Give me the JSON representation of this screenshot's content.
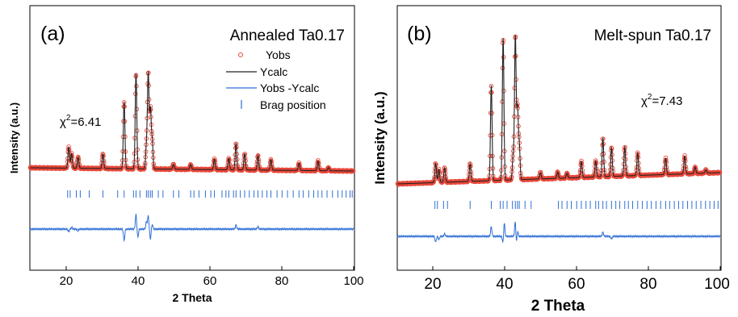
{
  "chart_data": [
    {
      "type": "line",
      "panel_label": "(a)",
      "title": "Annealed Ta0.17",
      "xlabel": "2 Theta",
      "ylabel": "Intensity (a.u.)",
      "xlim": [
        10,
        100
      ],
      "xticks": [
        "20",
        "40",
        "60",
        "80",
        "100"
      ],
      "chi2": {
        "prefix": "χ",
        "sup": "2",
        "suffix": "=6.41"
      },
      "grid": false,
      "legend_position": "top-right",
      "legend": [
        {
          "key": "yobs",
          "label": "Yobs",
          "marker": "circle"
        },
        {
          "key": "ycalc",
          "label": "Ycalc",
          "marker": "line"
        },
        {
          "key": "diff",
          "label": "Yobs -Ycalc",
          "marker": "line"
        },
        {
          "key": "bragg",
          "label": "Brag position",
          "marker": "tick"
        }
      ],
      "background": {
        "start": 10,
        "end": 6
      },
      "peaks": [
        [
          20.8,
          26
        ],
        [
          21.6,
          18
        ],
        [
          23.4,
          14
        ],
        [
          30.3,
          18
        ],
        [
          36.2,
          83
        ],
        [
          39.5,
          118
        ],
        [
          42.4,
          28
        ],
        [
          42.9,
          117
        ],
        [
          43.5,
          72
        ],
        [
          44.0,
          34
        ],
        [
          49.9,
          6
        ],
        [
          54.7,
          6
        ],
        [
          61.3,
          13
        ],
        [
          65.3,
          14
        ],
        [
          67.3,
          33
        ],
        [
          69.7,
          20
        ],
        [
          73.4,
          18
        ],
        [
          77.0,
          13
        ],
        [
          84.8,
          9
        ],
        [
          90.1,
          12
        ],
        [
          93.0,
          4
        ]
      ],
      "bragg_positions": [
        20.5,
        21.2,
        22.9,
        24.0,
        26.5,
        30.3,
        34.4,
        36.2,
        38.8,
        39.5,
        40.6,
        42.4,
        42.9,
        43.5,
        44.0,
        45.7,
        47.0,
        49.9,
        51.4,
        54.7,
        55.6,
        57.0,
        58.8,
        60.3,
        61.3,
        63.4,
        64.5,
        65.3,
        66.6,
        67.3,
        68.5,
        69.7,
        71.0,
        72.3,
        73.4,
        74.6,
        75.9,
        77.0,
        78.7,
        80.1,
        81.6,
        83.2,
        84.8,
        86.0,
        87.5,
        88.9,
        90.1,
        91.2,
        92.6,
        94.1,
        95.6,
        96.8,
        97.9,
        99.0,
        99.6
      ],
      "difference_features": [
        [
          20.8,
          -3
        ],
        [
          21.6,
          2
        ],
        [
          23.4,
          -2
        ],
        [
          36.2,
          -14
        ],
        [
          39.5,
          18
        ],
        [
          40.0,
          -10
        ],
        [
          42.4,
          9
        ],
        [
          42.9,
          16
        ],
        [
          43.5,
          -12
        ],
        [
          44.0,
          6
        ],
        [
          67.3,
          5
        ],
        [
          73.4,
          3
        ]
      ]
    },
    {
      "type": "line",
      "panel_label": "(b)",
      "title": "Melt-spun Ta0.17",
      "xlabel": "2 Theta",
      "ylabel": "Intensity (a.u.)",
      "xlim": [
        10,
        100
      ],
      "xticks": [
        "20",
        "40",
        "60",
        "80",
        "100"
      ],
      "chi2": {
        "prefix": "χ",
        "sup": "2",
        "suffix": "=7.43"
      },
      "grid": false,
      "legend_position": "none",
      "background": {
        "start": 6,
        "end": 20
      },
      "peaks": [
        [
          20.7,
          24
        ],
        [
          21.6,
          16
        ],
        [
          23.2,
          18
        ],
        [
          30.3,
          22
        ],
        [
          36.2,
          118
        ],
        [
          39.5,
          176
        ],
        [
          42.3,
          30
        ],
        [
          42.9,
          177
        ],
        [
          43.5,
          86
        ],
        [
          44.0,
          42
        ],
        [
          49.9,
          8
        ],
        [
          54.7,
          8
        ],
        [
          57.3,
          6
        ],
        [
          61.3,
          20
        ],
        [
          65.3,
          20
        ],
        [
          67.3,
          48
        ],
        [
          69.7,
          36
        ],
        [
          73.4,
          36
        ],
        [
          77.0,
          28
        ],
        [
          84.8,
          20
        ],
        [
          90.1,
          22
        ],
        [
          93.0,
          8
        ],
        [
          96.0,
          4
        ]
      ],
      "bragg_positions": [
        20.5,
        21.2,
        22.9,
        24.0,
        30.3,
        36.2,
        38.7,
        39.5,
        40.6,
        42.1,
        42.9,
        43.5,
        44.0,
        45.6,
        47.3,
        54.9,
        55.9,
        57.3,
        58.5,
        60.0,
        61.3,
        62.6,
        63.8,
        65.3,
        66.1,
        67.3,
        68.3,
        69.7,
        70.9,
        72.0,
        73.4,
        74.4,
        75.6,
        77.0,
        78.3,
        79.6,
        80.8,
        82.1,
        83.4,
        84.8,
        85.9,
        87.2,
        88.4,
        89.6,
        90.9,
        92.1,
        93.3,
        94.6,
        95.9,
        97.1,
        98.3,
        99.4
      ],
      "difference_features": [
        [
          20.7,
          -7
        ],
        [
          21.6,
          -4
        ],
        [
          23.2,
          3
        ],
        [
          36.2,
          12
        ],
        [
          39.5,
          -10
        ],
        [
          39.8,
          18
        ],
        [
          42.9,
          20
        ],
        [
          43.2,
          -12
        ],
        [
          43.5,
          8
        ],
        [
          67.3,
          5
        ],
        [
          69.7,
          -3
        ]
      ]
    }
  ],
  "colors": {
    "observed": "#e8483a",
    "calculated": "#222222",
    "difference": "#2f6fd6",
    "bragg": "#2f6fd6",
    "axis": "#000000"
  }
}
